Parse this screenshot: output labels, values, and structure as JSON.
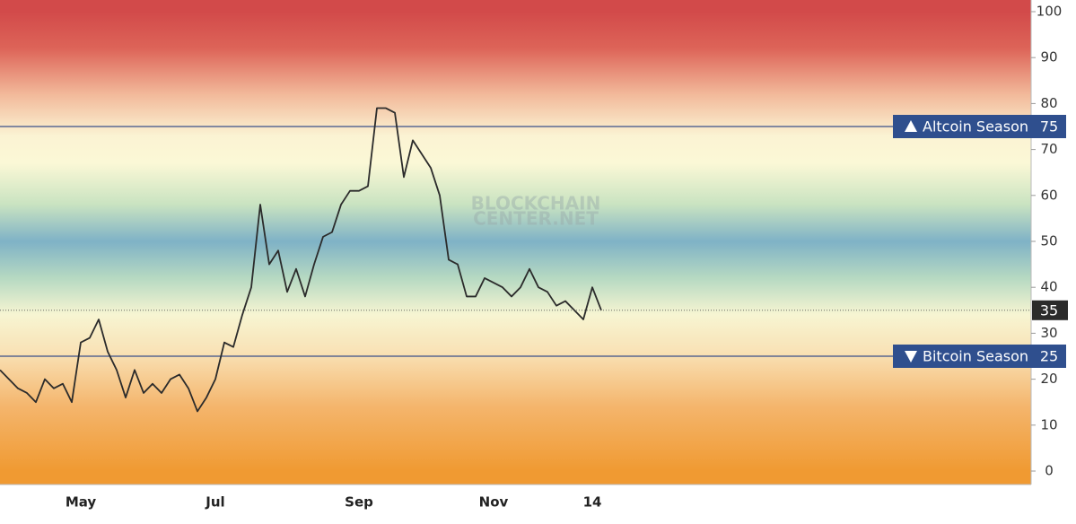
{
  "chart_data": {
    "type": "line",
    "watermark": [
      "BLOCKCHAIN",
      "CENTER.NET"
    ],
    "categories": [
      null,
      null,
      null,
      null,
      null,
      null,
      null,
      null,
      null,
      "May",
      null,
      null,
      null,
      null,
      null,
      null,
      null,
      null,
      null,
      null,
      null,
      null,
      null,
      null,
      "Jul",
      null,
      null,
      null,
      null,
      null,
      null,
      null,
      null,
      null,
      null,
      null,
      null,
      null,
      null,
      null,
      "Sep",
      null,
      null,
      null,
      null,
      null,
      null,
      null,
      null,
      null,
      null,
      null,
      null,
      null,
      null,
      "Nov",
      null,
      null,
      null,
      null,
      null,
      null,
      null,
      null,
      null,
      null,
      "14",
      null
    ],
    "values": [
      22,
      20,
      18,
      17,
      15,
      20,
      18,
      19,
      15,
      28,
      29,
      33,
      26,
      22,
      16,
      22,
      17,
      19,
      17,
      20,
      21,
      18,
      13,
      16,
      20,
      28,
      27,
      34,
      40,
      58,
      45,
      48,
      39,
      44,
      38,
      45,
      51,
      52,
      58,
      61,
      61,
      62,
      79,
      79,
      78,
      64,
      72,
      69,
      66,
      60,
      46,
      45,
      38,
      38,
      42,
      41,
      40,
      38,
      40,
      44,
      40,
      39,
      36,
      37,
      35,
      33,
      40,
      35
    ],
    "color": "#2b2b2b",
    "ylim": [
      0,
      100
    ],
    "yticks": [
      0,
      10,
      20,
      30,
      40,
      50,
      60,
      70,
      80,
      90,
      100
    ],
    "reference_lines": [
      {
        "label": "Altcoin Season",
        "value": 75,
        "direction": "up"
      },
      {
        "label": "Bitcoin Season",
        "value": 25,
        "direction": "down"
      }
    ],
    "grid": false
  }
}
